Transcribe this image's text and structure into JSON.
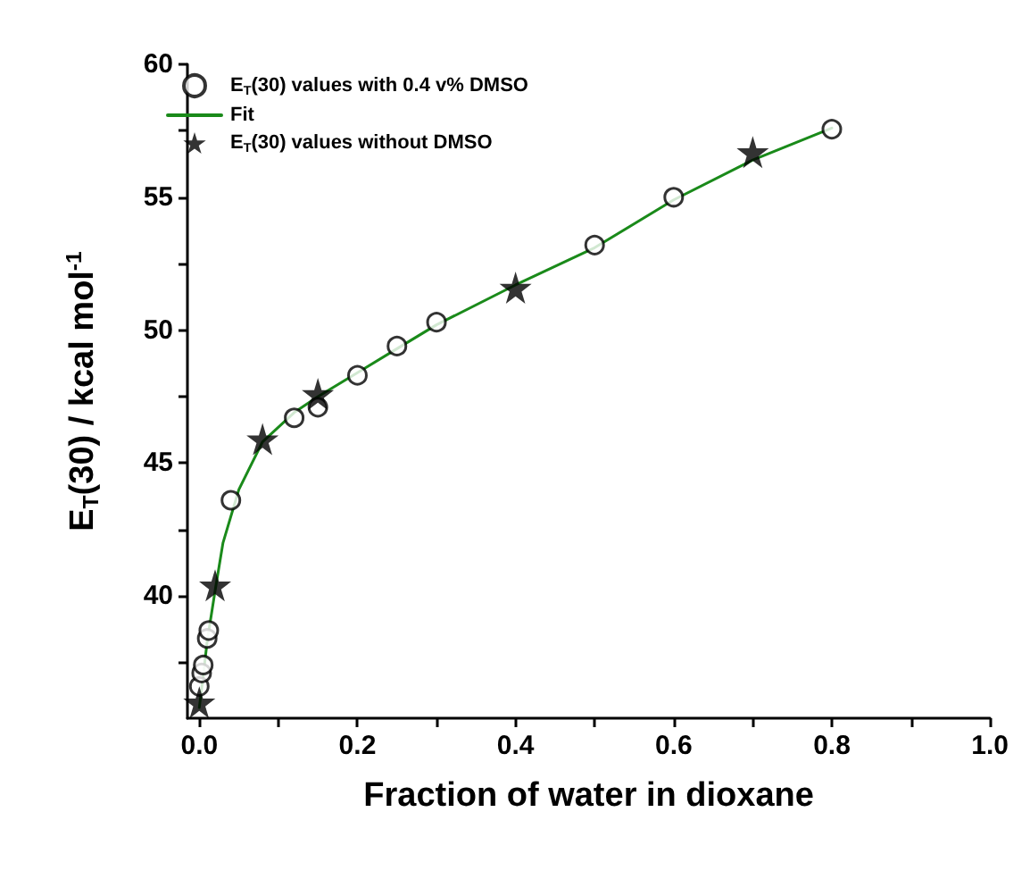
{
  "chart_data": {
    "type": "scatter",
    "xlabel": "Fraction of water in dioxane",
    "ylabel": "E$_{T}$(30) / kcal mol$^{-1}$",
    "xlim": [
      -0.015,
      1.0
    ],
    "ylim": [
      35.4,
      60
    ],
    "xticks": [
      {
        "value": 0,
        "label": "0.0"
      },
      {
        "value": 0.1,
        "label": null
      },
      0.2,
      {
        "value": 0.3,
        "label": null
      },
      0.4,
      {
        "value": 0.5,
        "label": null
      },
      0.6,
      {
        "value": 0.7,
        "label": null
      },
      0.8,
      {
        "value": 0.9,
        "label": null
      },
      {
        "value": 1,
        "label": "1.0"
      }
    ],
    "yticks": [
      {
        "value": 37.5,
        "label": null
      },
      40,
      {
        "value": 42.5,
        "label": null
      },
      45,
      {
        "value": 47.5,
        "label": null
      },
      50,
      {
        "value": 52.5,
        "label": null
      },
      55,
      {
        "value": 57.5,
        "label": null
      },
      60
    ],
    "grid": false,
    "legend": "top left",
    "series": [
      {
        "name": "E$_{T}$(30) values with 0.4 v% DMSO",
        "marker": "circle",
        "color": "#ffffff",
        "x": [
          0.0,
          0.003,
          0.005,
          0.01,
          0.012,
          0.04,
          0.12,
          0.15,
          0.2,
          0.25,
          0.3,
          0.5,
          0.6,
          0.8
        ],
        "values": [
          36.6,
          37.1,
          37.4,
          38.4,
          38.7,
          43.6,
          46.7,
          47.1,
          48.3,
          49.4,
          50.3,
          53.2,
          55.0,
          57.56
        ]
      },
      {
        "name": "Fit",
        "type": "line",
        "marker": "none",
        "line_style": "solid",
        "color": "#1a8a1a",
        "x": [
          0,
          0.005,
          0.01,
          0.02,
          0.03,
          0.05,
          0.08,
          0.12,
          0.15,
          0.2,
          0.25,
          0.3,
          0.4,
          0.5,
          0.6,
          0.7,
          0.8
        ],
        "values": [
          35.8,
          37.0,
          38.3,
          40.2,
          42.0,
          44.0,
          45.8,
          46.9,
          47.5,
          48.4,
          49.3,
          50.2,
          51.7,
          53.1,
          54.9,
          56.4,
          57.6
        ]
      },
      {
        "name": "E$_{T}$(30) values without DMSO",
        "marker": "star",
        "color": "#000000",
        "x": [
          0.0,
          0.02,
          0.08,
          0.15,
          0.4,
          0.7
        ],
        "values": [
          36.0,
          40.4,
          45.9,
          47.6,
          51.6,
          56.7
        ]
      }
    ]
  }
}
